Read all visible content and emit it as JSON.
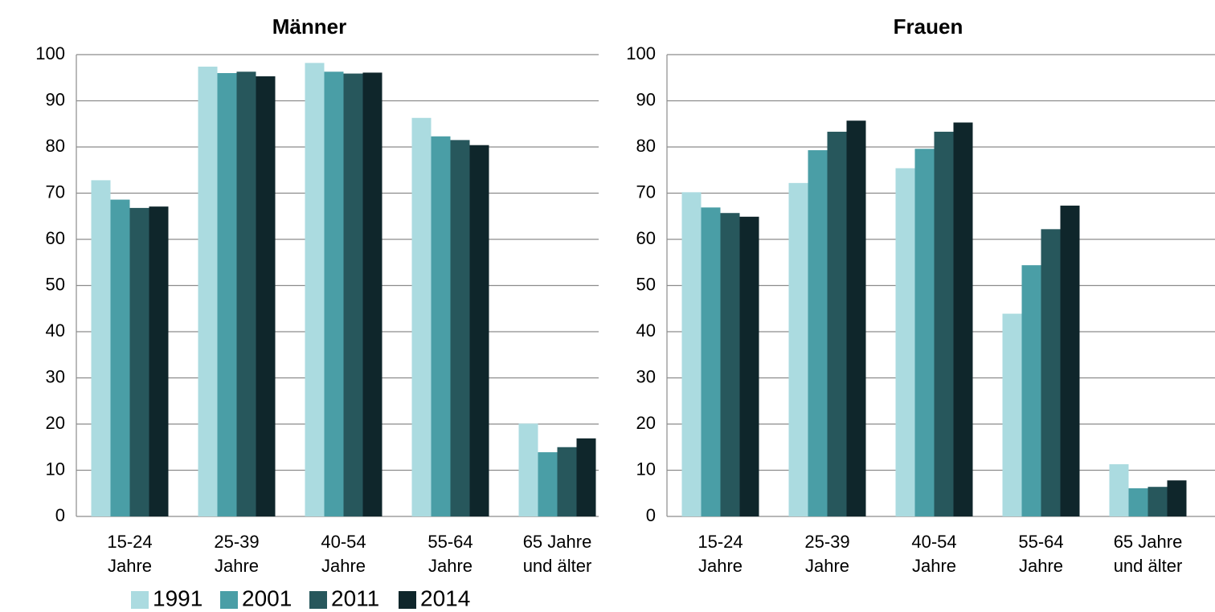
{
  "chart_data": [
    {
      "type": "bar",
      "title": "Männer",
      "categories": [
        [
          "15-24",
          "Jahre"
        ],
        [
          "25-39",
          "Jahre"
        ],
        [
          "40-54",
          "Jahre"
        ],
        [
          "55-64",
          "Jahre"
        ],
        [
          "65 Jahre",
          "und älter"
        ]
      ],
      "ylim": [
        0,
        100
      ],
      "yticks": [
        0,
        10,
        20,
        30,
        40,
        50,
        60,
        70,
        80,
        90,
        100
      ],
      "grid": true,
      "series": [
        {
          "name": "1991",
          "color": "#abdbe0",
          "values": [
            72.8,
            97.4,
            98.2,
            86.3,
            20.1
          ]
        },
        {
          "name": "2001",
          "color": "#4a9ea6",
          "values": [
            68.6,
            96.0,
            96.3,
            82.3,
            13.9
          ]
        },
        {
          "name": "2011",
          "color": "#27575c",
          "values": [
            66.8,
            96.3,
            95.9,
            81.5,
            15.0
          ]
        },
        {
          "name": "2014",
          "color": "#0f262b",
          "values": [
            67.1,
            95.3,
            96.1,
            80.4,
            16.9
          ]
        }
      ]
    },
    {
      "type": "bar",
      "title": "Frauen",
      "categories": [
        [
          "15-24",
          "Jahre"
        ],
        [
          "25-39",
          "Jahre"
        ],
        [
          "40-54",
          "Jahre"
        ],
        [
          "55-64",
          "Jahre"
        ],
        [
          "65 Jahre",
          "und älter"
        ]
      ],
      "ylim": [
        0,
        100
      ],
      "yticks": [
        0,
        10,
        20,
        30,
        40,
        50,
        60,
        70,
        80,
        90,
        100
      ],
      "grid": true,
      "series": [
        {
          "name": "1991",
          "color": "#abdbe0",
          "values": [
            70.2,
            72.2,
            75.4,
            43.9,
            11.3
          ]
        },
        {
          "name": "2001",
          "color": "#4a9ea6",
          "values": [
            66.9,
            79.3,
            79.6,
            54.4,
            6.1
          ]
        },
        {
          "name": "2011",
          "color": "#27575c",
          "values": [
            65.7,
            83.3,
            83.3,
            62.2,
            6.4
          ]
        },
        {
          "name": "2014",
          "color": "#0f262b",
          "values": [
            64.9,
            85.7,
            85.3,
            67.3,
            7.8
          ]
        }
      ]
    }
  ],
  "legend": {
    "placement": "bottom-left",
    "items": [
      {
        "label": "1991",
        "color": "#abdbe0"
      },
      {
        "label": "2001",
        "color": "#4a9ea6"
      },
      {
        "label": "2011",
        "color": "#27575c"
      },
      {
        "label": "2014",
        "color": "#0f262b"
      }
    ]
  }
}
